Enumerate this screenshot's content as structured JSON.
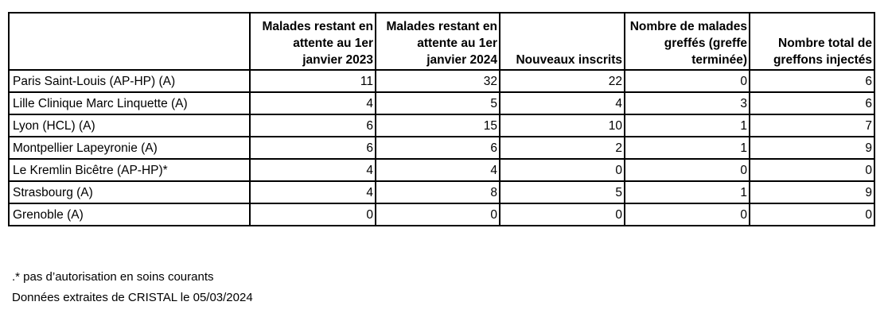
{
  "table": {
    "headers": [
      "",
      "Malades restant en attente au 1er janvier 2023",
      "Malades restant en attente au 1er janvier 2024",
      "Nouveaux inscrits",
      "Nombre de malades greffés (greffe terminée)",
      "Nombre total de greffons injectés"
    ],
    "rows": [
      [
        "Paris Saint-Louis (AP-HP) (A)",
        "11",
        "32",
        "22",
        "0",
        "6"
      ],
      [
        "Lille Clinique Marc Linquette (A)",
        "4",
        "5",
        "4",
        "3",
        "6"
      ],
      [
        "Lyon (HCL) (A)",
        "6",
        "15",
        "10",
        "1",
        "7"
      ],
      [
        "Montpellier Lapeyronie (A)",
        "6",
        "6",
        "2",
        "1",
        "9"
      ],
      [
        "Le Kremlin Bicêtre (AP-HP)*",
        "4",
        "4",
        "0",
        "0",
        "0"
      ],
      [
        "Strasbourg (A)",
        "4",
        "8",
        "5",
        "1",
        "9"
      ],
      [
        "Grenoble (A)",
        "0",
        "0",
        "0",
        "0",
        "0"
      ]
    ]
  },
  "notes": {
    "footnote": ".* pas d’autorisation en soins courants",
    "source": "Données extraites de CRISTAL le 05/03/2024"
  }
}
